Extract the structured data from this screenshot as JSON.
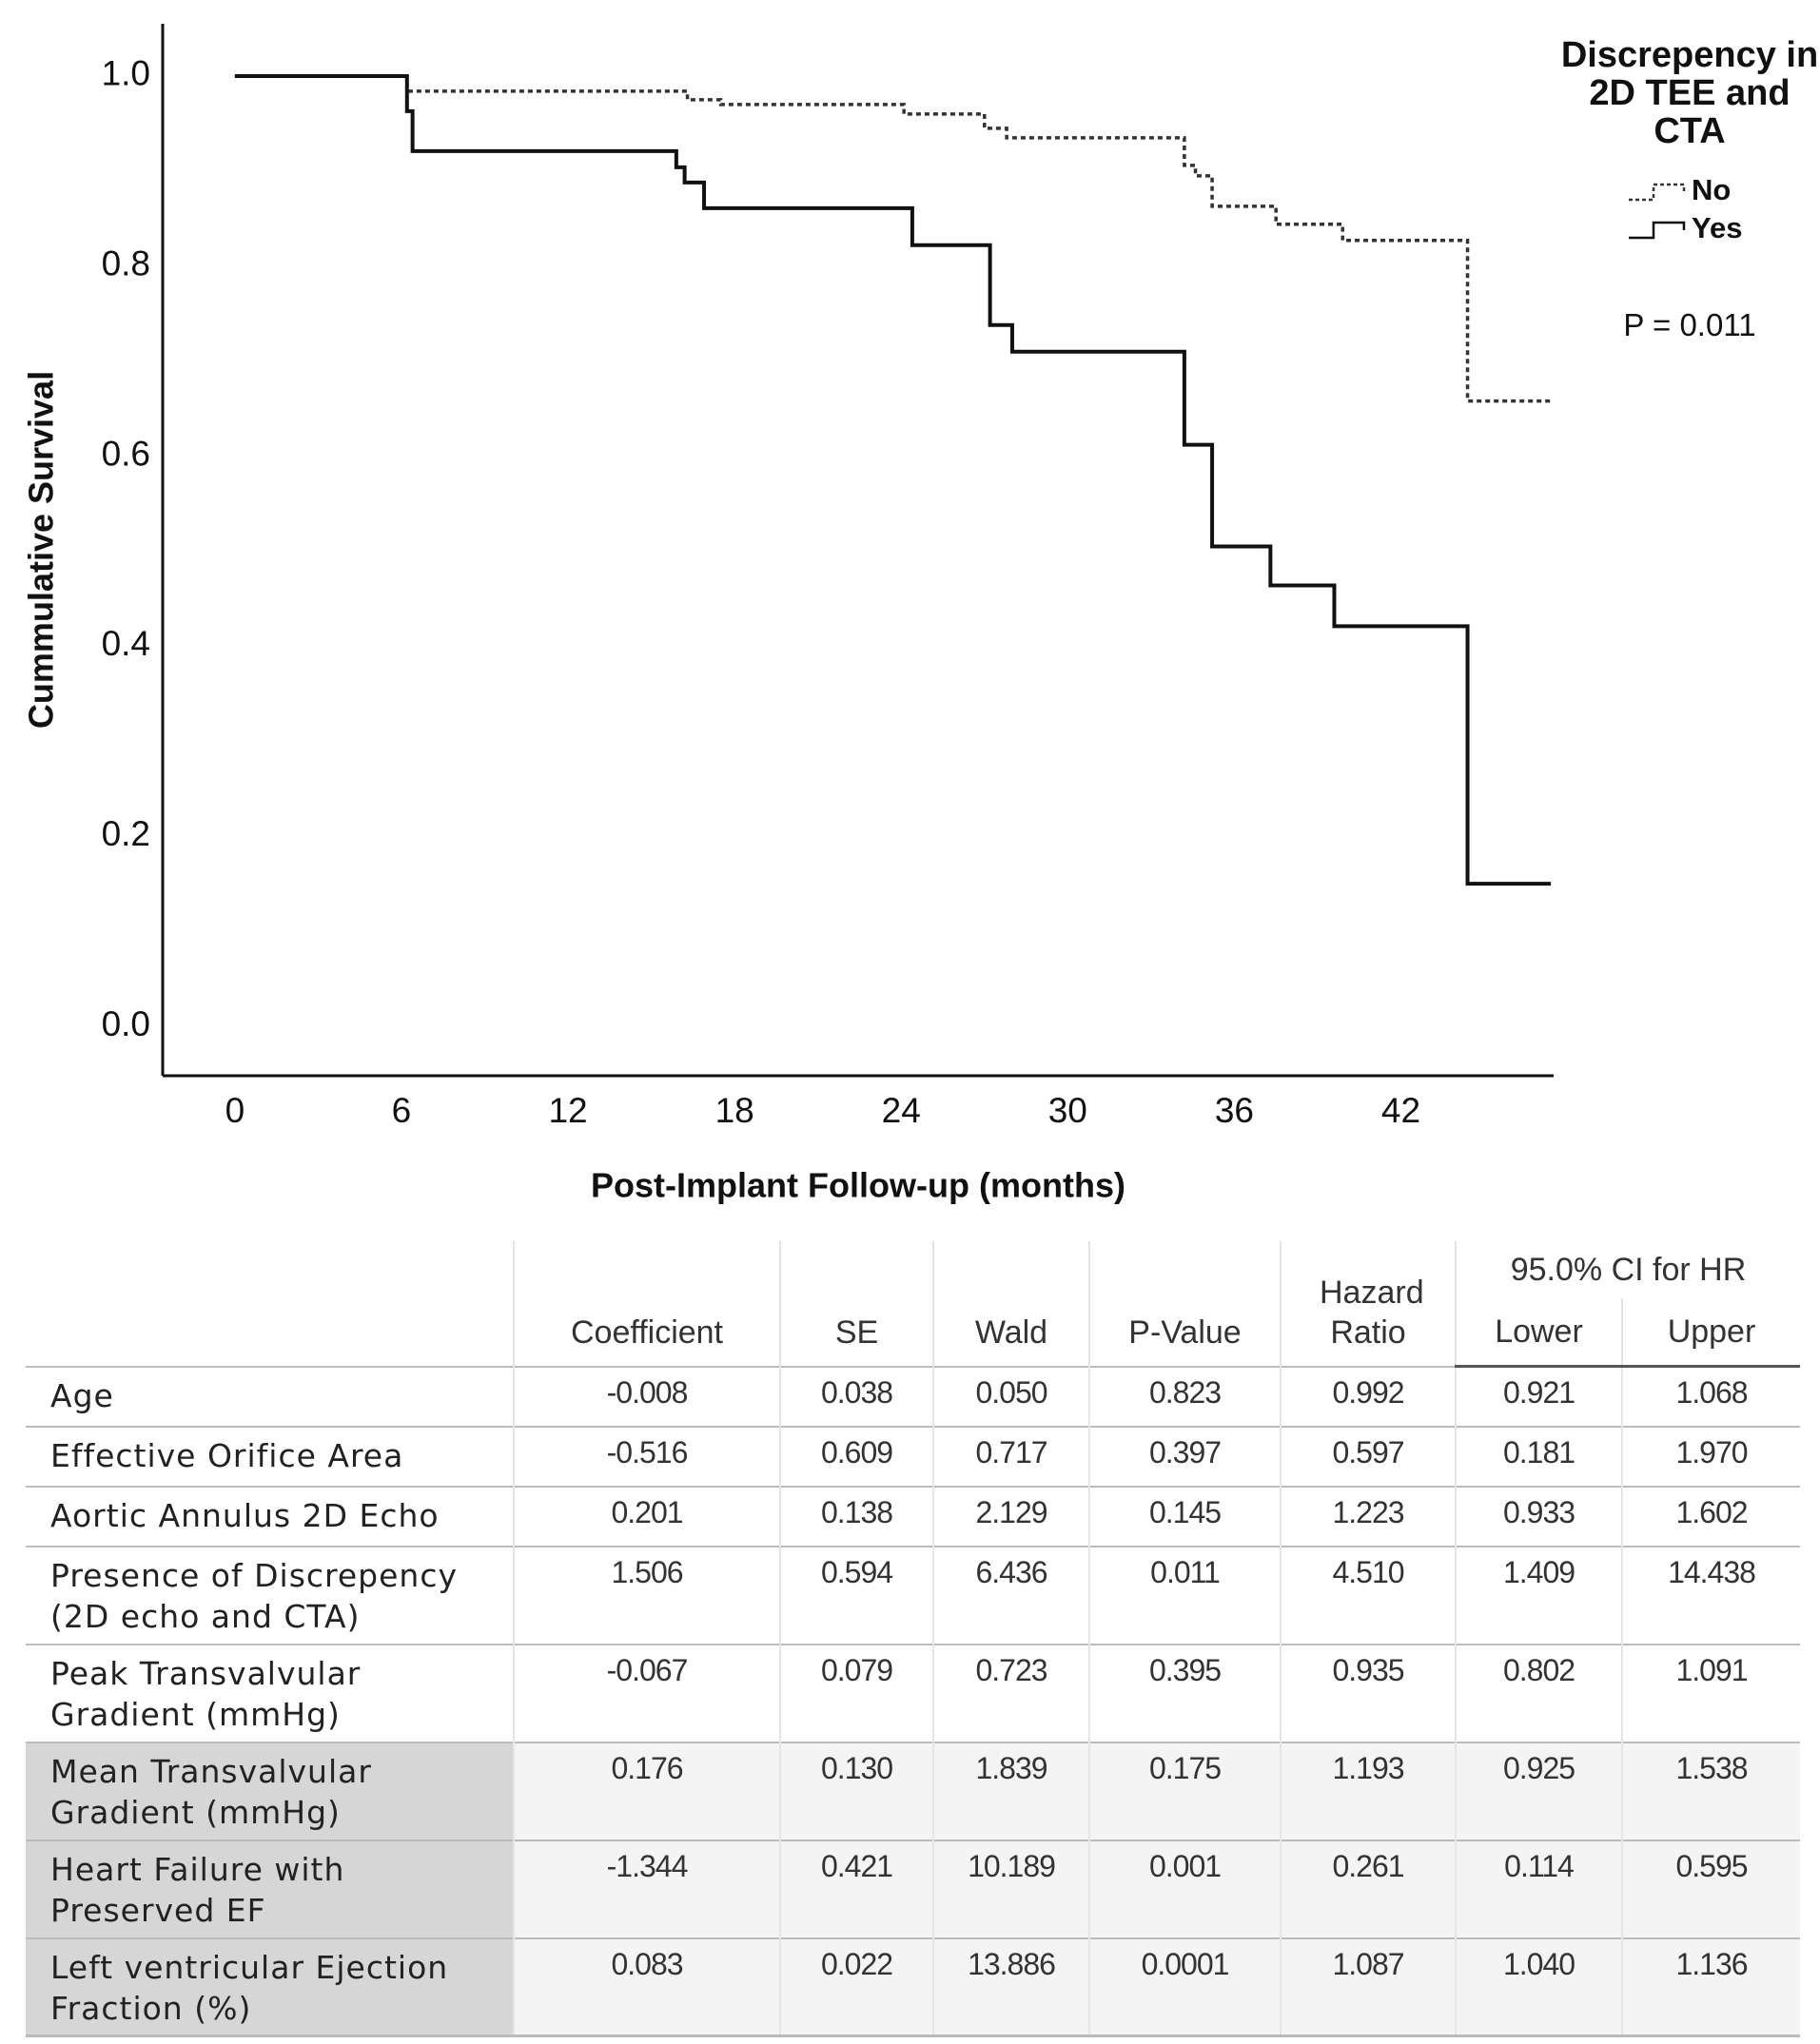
{
  "chart_data": {
    "type": "step",
    "xlabel": "Post-Implant Follow-up (months)",
    "ylabel": "Cummulative Survival",
    "xlim": [
      -2.6,
      47.5
    ],
    "ylim": [
      -0.052,
      1.055
    ],
    "xticks": [
      0,
      6,
      12,
      18,
      24,
      30,
      36,
      42
    ],
    "yticks": [
      {
        "value": 0,
        "label": "0.0"
      },
      {
        "value": 0.2,
        "label": "0.2"
      },
      {
        "value": 0.4,
        "label": "0.4"
      },
      {
        "value": 0.6,
        "label": "0.6"
      },
      {
        "value": 0.8,
        "label": "0.8"
      },
      {
        "value": 1,
        "label": "1.0"
      }
    ],
    "legend_title": "Discrepency in 2D TEE and CTA",
    "annotation": "P = 0.011",
    "series": [
      {
        "name": "No",
        "color": "#333333",
        "line_style": "dotted",
        "x": [
          0,
          6.2,
          16.3,
          17.5,
          24.1,
          27.0,
          27.8,
          34.2,
          34.6,
          35.2,
          37.5,
          39.9,
          44.4,
          47.4
        ],
        "values": [
          1.0,
          0.984,
          0.975,
          0.97,
          0.96,
          0.945,
          0.935,
          0.906,
          0.895,
          0.863,
          0.844,
          0.827,
          0.658,
          0.658
        ]
      },
      {
        "name": "Yes",
        "color": "#111111",
        "line_style": "solid",
        "x": [
          0,
          6.2,
          6.4,
          15.9,
          16.2,
          16.9,
          24.4,
          27.2,
          28.0,
          34.2,
          35.2,
          37.3,
          39.6,
          44.4,
          47.4
        ],
        "values": [
          1.0,
          0.963,
          0.921,
          0.904,
          0.888,
          0.861,
          0.822,
          0.738,
          0.71,
          0.612,
          0.505,
          0.464,
          0.421,
          0.15,
          0.15
        ]
      }
    ]
  },
  "table": {
    "columns": [
      "Coefficient",
      "SE",
      "Wald",
      "P-Value",
      "Hazard Ratio"
    ],
    "group_header": "95.0% CI for HR",
    "group_columns": [
      "Lower",
      "Upper"
    ],
    "rows": [
      [
        "Age",
        "-0.008",
        "0.038",
        "0.050",
        "0.823",
        "0.992",
        "0.921",
        "1.068"
      ],
      [
        "Effective Orifice Area",
        "-0.516",
        "0.609",
        "0.717",
        "0.397",
        "0.597",
        "0.181",
        "1.970"
      ],
      [
        "Aortic Annulus 2D Echo",
        "0.201",
        "0.138",
        "2.129",
        "0.145",
        "1.223",
        "0.933",
        "1.602"
      ],
      [
        "Presence of Discrepency (2D echo and CTA)",
        "1.506",
        "0.594",
        "6.436",
        "0.011",
        "4.510",
        "1.409",
        "14.438"
      ],
      [
        "Peak Transvalvular Gradient (mmHg)",
        "-0.067",
        "0.079",
        "0.723",
        "0.395",
        "0.935",
        "0.802",
        "1.091"
      ],
      [
        "Mean Transvalvular Gradient (mmHg)",
        "0.176",
        "0.130",
        "1.839",
        "0.175",
        "1.193",
        "0.925",
        "1.538"
      ],
      [
        "Heart Failure with Preserved EF",
        "-1.344",
        "0.421",
        "10.189",
        "0.001",
        "0.261",
        "0.114",
        "0.595"
      ],
      [
        "Left ventricular Ejection Fraction (%)",
        "0.083",
        "0.022",
        "13.886",
        "0.0001",
        "1.087",
        "1.040",
        "1.136"
      ]
    ]
  }
}
